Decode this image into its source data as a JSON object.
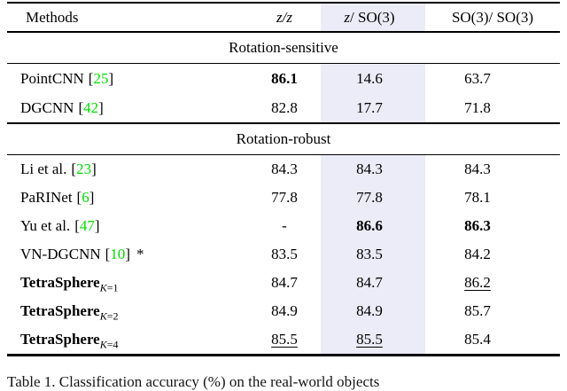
{
  "colors": {
    "highlight_column": "#ececf8",
    "citation_green": "#00dd00",
    "text": "#000000"
  },
  "table": {
    "cite_open": "[",
    "cite_close": "]",
    "header": {
      "methods": "Methods",
      "col_zz": "z/z",
      "col_zso3_it": "z",
      "col_zso3_rest": "/ SO(3)",
      "col_so3so3": "SO(3)/ SO(3)"
    },
    "sections": [
      {
        "title": "Rotation-sensitive",
        "rows": [
          {
            "name": "PointCNN",
            "cite": "25",
            "v1": "86.1",
            "v2": "14.6",
            "v3": "63.7"
          },
          {
            "name": "DGCNN",
            "cite": "42",
            "v1": "82.8",
            "v2": "17.7",
            "v3": "71.8"
          }
        ]
      },
      {
        "title": "Rotation-robust",
        "rows": [
          {
            "name": "Li et al.",
            "cite": "23",
            "v1": "84.3",
            "v2": "84.3",
            "v3": "84.3"
          },
          {
            "name": "PaRINet",
            "cite": "6",
            "v1": "77.8",
            "v2": "77.8",
            "v3": "78.1"
          },
          {
            "name": "Yu et al.",
            "cite": "47",
            "v1": "-",
            "v2": "86.6",
            "v3": "86.3"
          },
          {
            "name": "VN-DGCNN",
            "cite": "10",
            "suffix": "*",
            "v1": "83.5",
            "v2": "83.5",
            "v3": "84.2"
          },
          {
            "name": "TetraSphere",
            "subVar": "K",
            "subRest": "=1",
            "v1": "84.7",
            "v2": "84.7",
            "v3": "86.2"
          },
          {
            "name": "TetraSphere",
            "subVar": "K",
            "subRest": "=2",
            "v1": "84.9",
            "v2": "84.9",
            "v3": "85.7"
          },
          {
            "name": "TetraSphere",
            "subVar": "K",
            "subRest": "=4",
            "v1": "85.5",
            "v2": "85.5",
            "v3": "85.4"
          }
        ]
      }
    ]
  },
  "caption": "Table 1. Classification accuracy (%) on the real-world objects"
}
